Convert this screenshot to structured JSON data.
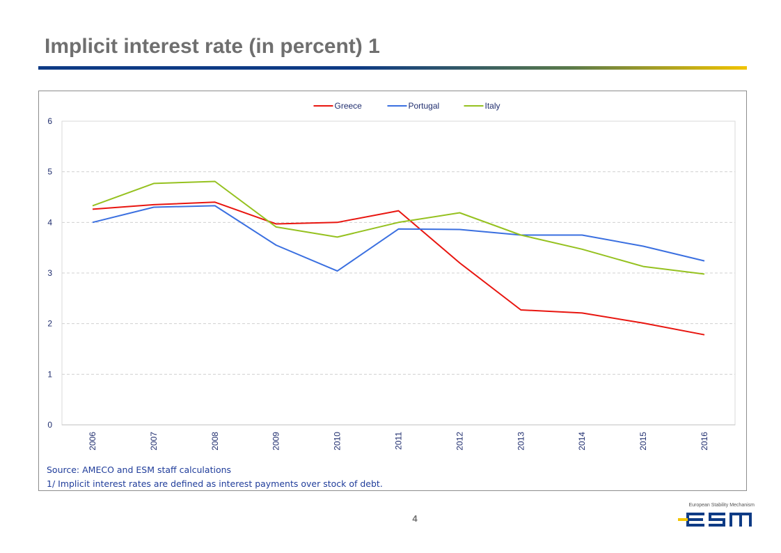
{
  "slide": {
    "title": "Implicit interest rate (in percent) 1",
    "page_number": "4",
    "source": "Source: AMECO and ESM staff calculations",
    "footnote": "1/ Implicit interest rates are defined as interest payments over stock of debt.",
    "logo_caption": "European Stability Mechanism",
    "logo_wordmark": "esm"
  },
  "colors": {
    "title": "#6f6f6f",
    "axis_text": "#1f2d6e",
    "note_text": "#1f3c9a",
    "grid": "#d0d0d0",
    "logo_blue": "#0e3b85",
    "logo_yellow": "#f2c400"
  },
  "chart_data": {
    "type": "line",
    "x": [
      "2006",
      "2007",
      "2008",
      "2009",
      "2010",
      "2011",
      "2012",
      "2013",
      "2014",
      "2015",
      "2016"
    ],
    "ylim": [
      0,
      6
    ],
    "yticks": [
      0,
      1,
      2,
      3,
      4,
      5,
      6
    ],
    "grid": "horizontal dashed",
    "legend_position": "top-center",
    "xlabel": "",
    "ylabel": "",
    "series": [
      {
        "name": "Greece",
        "color": "#e8150f",
        "values": [
          4.26,
          4.35,
          4.4,
          3.97,
          4.0,
          4.23,
          3.2,
          2.27,
          2.21,
          2.01,
          1.78
        ]
      },
      {
        "name": "Portugal",
        "color": "#3a6fe0",
        "values": [
          4.0,
          4.3,
          4.33,
          3.55,
          3.04,
          3.87,
          3.86,
          3.75,
          3.75,
          3.53,
          3.24
        ]
      },
      {
        "name": "Italy",
        "color": "#95c11f",
        "values": [
          4.33,
          4.77,
          4.81,
          3.91,
          3.71,
          4.0,
          4.19,
          3.75,
          3.47,
          3.13,
          2.98
        ]
      }
    ]
  }
}
